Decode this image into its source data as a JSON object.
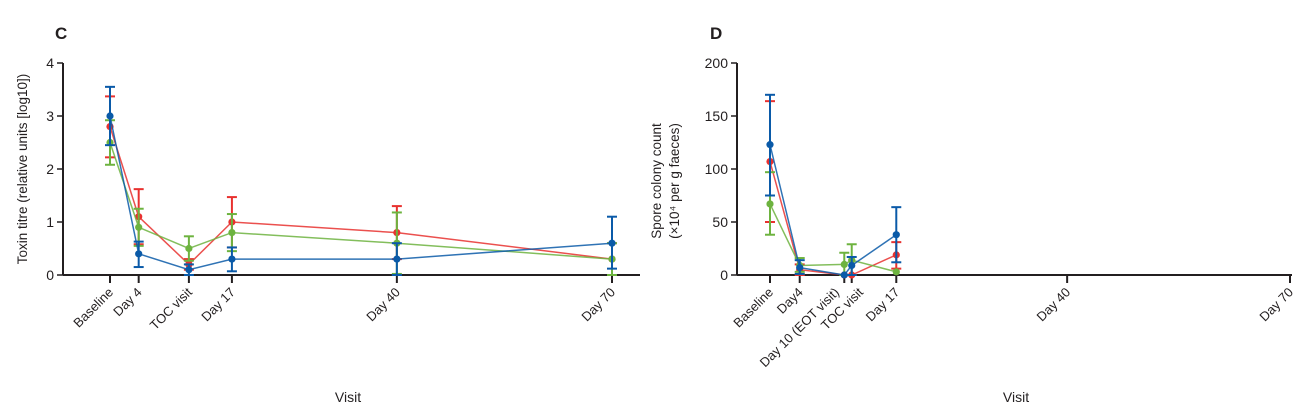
{
  "chart_data": [
    {
      "type": "line",
      "panel_label": "C",
      "ylabel": "Toxin titre (relative units [log10])",
      "xlabel": "Visit",
      "ylim": [
        0,
        4
      ],
      "yticks": [
        0,
        1,
        2,
        3,
        4
      ],
      "categories": [
        "Baseline",
        "Day 4",
        "TOC visit",
        "Day 17",
        "Day 40",
        "Day 70"
      ],
      "x_days": [
        0,
        4,
        11,
        17,
        40,
        70
      ],
      "xlim_days": [
        -6.5,
        70
      ],
      "grid": false,
      "series": [
        {
          "color": "#e8312f",
          "values": [
            2.8,
            1.1,
            0.2,
            1.0,
            0.8,
            0.3
          ],
          "err_low": [
            2.22,
            0.58,
            0.1,
            0.52,
            0.3,
            0.0
          ],
          "err_high": [
            3.37,
            1.62,
            0.3,
            1.47,
            1.3,
            0.6
          ]
        },
        {
          "color": "#6db33f",
          "values": [
            2.5,
            0.9,
            0.5,
            0.8,
            0.6,
            0.3
          ],
          "err_low": [
            2.08,
            0.55,
            0.27,
            0.45,
            0.02,
            0.0
          ],
          "err_high": [
            2.92,
            1.25,
            0.73,
            1.15,
            1.18,
            0.6
          ]
        },
        {
          "color": "#0a5aa8",
          "values": [
            3.0,
            0.4,
            0.1,
            0.3,
            0.3,
            0.6
          ],
          "err_low": [
            2.45,
            0.15,
            0.0,
            0.07,
            0.0,
            0.12
          ],
          "err_high": [
            3.55,
            0.63,
            0.2,
            0.52,
            0.6,
            1.1
          ]
        }
      ]
    },
    {
      "type": "line",
      "panel_label": "D",
      "ylabel_line1": "Spore colony count",
      "ylabel_line2": "(×10⁴ per g faeces)",
      "xlabel": "Visit",
      "ylim": [
        0,
        200
      ],
      "yticks": [
        0,
        50,
        100,
        150,
        200
      ],
      "categories": [
        "Baseline",
        "Day4",
        "Day 10 (EOT visit)",
        "TOC visit",
        "Day 17",
        "Day 40",
        "Day 70"
      ],
      "x_days": [
        0,
        4,
        10,
        11,
        17,
        40,
        70
      ],
      "xlim_days": [
        -4.5,
        70
      ],
      "grid": false,
      "series": [
        {
          "color": "#e8312f",
          "values": [
            107,
            5,
            0,
            0,
            19,
            null,
            null
          ],
          "err_low": [
            50,
            0,
            0,
            0,
            6,
            null,
            null
          ],
          "err_high": [
            164,
            10,
            0,
            0,
            31,
            null,
            null
          ]
        },
        {
          "color": "#6db33f",
          "values": [
            67,
            9,
            10,
            14,
            3,
            null,
            null
          ],
          "err_low": [
            38,
            3,
            0,
            0,
            3,
            null,
            null
          ],
          "err_high": [
            97,
            16,
            21,
            29,
            3,
            null,
            null
          ]
        },
        {
          "color": "#0a5aa8",
          "values": [
            123,
            7,
            0,
            9,
            38,
            null,
            null
          ],
          "err_low": [
            75,
            1,
            0,
            0,
            12,
            null,
            null
          ],
          "err_high": [
            170,
            14,
            0,
            17,
            64,
            null,
            null
          ]
        }
      ]
    }
  ]
}
